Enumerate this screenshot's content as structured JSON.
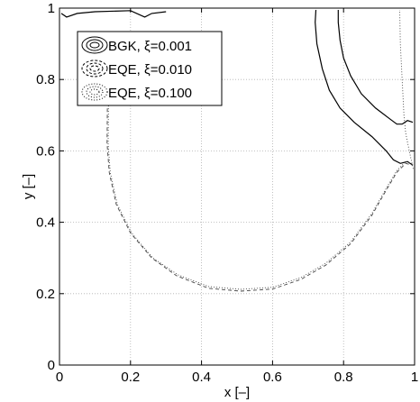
{
  "chart_data": {
    "type": "contour",
    "title": "",
    "xlabel": "x [–]",
    "ylabel": "y [–]",
    "xlim": [
      0,
      1
    ],
    "ylim": [
      0,
      1
    ],
    "xticks": [
      "0",
      "0.2",
      "0.4",
      "0.6",
      "0.8",
      "1"
    ],
    "yticks": [
      "0",
      "0.2",
      "0.4",
      "0.6",
      "0.8",
      "1"
    ],
    "grid": true,
    "legend_position": "top-left",
    "series": [
      {
        "name": "BGK, ξ=0.001",
        "style": "solid",
        "points": [
          [
            0.995,
            0.56
          ],
          [
            0.98,
            0.57
          ],
          [
            0.96,
            0.565
          ],
          [
            0.94,
            0.575
          ],
          [
            0.92,
            0.6
          ],
          [
            0.88,
            0.64
          ],
          [
            0.83,
            0.68
          ],
          [
            0.79,
            0.72
          ],
          [
            0.76,
            0.77
          ],
          [
            0.74,
            0.83
          ],
          [
            0.725,
            0.9
          ],
          [
            0.72,
            0.96
          ],
          [
            0.722,
            0.995
          ]
        ]
      },
      {
        "name": "EQE, ξ=0.010",
        "style": "dashed",
        "points": [
          [
            0.155,
            0.93
          ],
          [
            0.15,
            0.88
          ],
          [
            0.138,
            0.8
          ],
          [
            0.135,
            0.75
          ],
          [
            0.134,
            0.62
          ],
          [
            0.14,
            0.54
          ],
          [
            0.16,
            0.45
          ],
          [
            0.2,
            0.37
          ],
          [
            0.26,
            0.3
          ],
          [
            0.33,
            0.25
          ],
          [
            0.42,
            0.215
          ],
          [
            0.51,
            0.207
          ],
          [
            0.6,
            0.213
          ],
          [
            0.68,
            0.24
          ],
          [
            0.75,
            0.28
          ],
          [
            0.82,
            0.34
          ],
          [
            0.88,
            0.42
          ],
          [
            0.92,
            0.49
          ],
          [
            0.95,
            0.54
          ],
          [
            0.975,
            0.565
          ],
          [
            0.995,
            0.56
          ]
        ]
      },
      {
        "name": "EQE, ξ=0.100",
        "style": "dotted",
        "points": [
          [
            0.16,
            0.93
          ],
          [
            0.152,
            0.88
          ],
          [
            0.142,
            0.8
          ],
          [
            0.138,
            0.75
          ],
          [
            0.137,
            0.62
          ],
          [
            0.143,
            0.54
          ],
          [
            0.163,
            0.45
          ],
          [
            0.203,
            0.37
          ],
          [
            0.263,
            0.3
          ],
          [
            0.333,
            0.253
          ],
          [
            0.42,
            0.22
          ],
          [
            0.51,
            0.212
          ],
          [
            0.6,
            0.218
          ],
          [
            0.68,
            0.245
          ],
          [
            0.75,
            0.285
          ],
          [
            0.82,
            0.345
          ],
          [
            0.88,
            0.425
          ],
          [
            0.92,
            0.495
          ],
          [
            0.95,
            0.545
          ],
          [
            0.975,
            0.57
          ],
          [
            0.995,
            0.565
          ]
        ]
      }
    ],
    "extra_contours": [
      {
        "style": "solid",
        "points": [
          [
            0.995,
            0.68
          ],
          [
            0.98,
            0.685
          ],
          [
            0.965,
            0.675
          ],
          [
            0.95,
            0.675
          ],
          [
            0.93,
            0.69
          ],
          [
            0.89,
            0.72
          ],
          [
            0.85,
            0.76
          ],
          [
            0.82,
            0.81
          ],
          [
            0.8,
            0.86
          ],
          [
            0.79,
            0.91
          ],
          [
            0.785,
            0.96
          ],
          [
            0.785,
            0.995
          ]
        ]
      },
      {
        "style": "solid",
        "points": [
          [
            0.005,
            0.985
          ],
          [
            0.02,
            0.975
          ],
          [
            0.05,
            0.985
          ],
          [
            0.1,
            0.99
          ],
          [
            0.2,
            0.993
          ],
          [
            0.24,
            0.975
          ],
          [
            0.26,
            0.985
          ],
          [
            0.3,
            0.99
          ]
        ]
      },
      {
        "style": "dotted",
        "points": [
          [
            0.996,
            0.55
          ],
          [
            0.985,
            0.6
          ],
          [
            0.975,
            0.65
          ],
          [
            0.97,
            0.7
          ],
          [
            0.965,
            0.8
          ],
          [
            0.96,
            0.9
          ],
          [
            0.958,
            0.995
          ]
        ]
      }
    ],
    "legend": [
      {
        "label": "BGK, ξ=0.001",
        "style": "solid"
      },
      {
        "label": "EQE, ξ=0.010",
        "style": "dashed"
      },
      {
        "label": "EQE, ξ=0.100",
        "style": "dotted"
      }
    ]
  }
}
